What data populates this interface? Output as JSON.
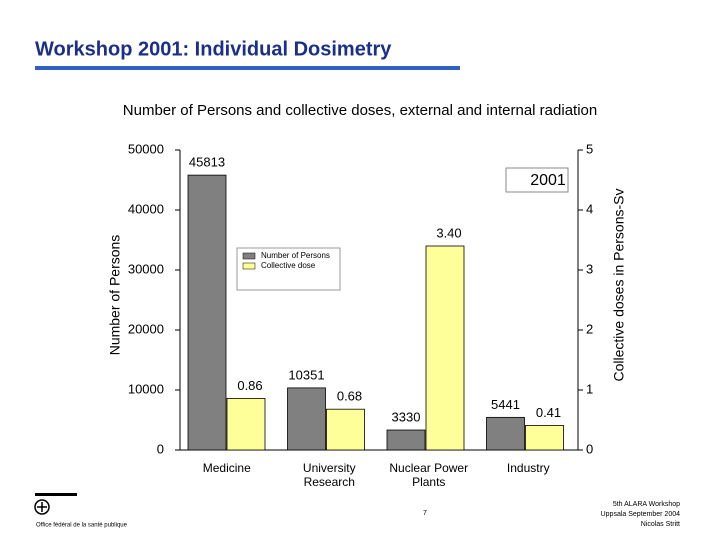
{
  "header": {
    "title": "Workshop 2001: Individual Dosimetry"
  },
  "chart_data": {
    "type": "bar",
    "title": "Number of Persons and collective doses, external and internal radiation",
    "y_label": "Number of Persons",
    "y2_label": "Collective doses in Persons-Sv",
    "annotation": "2001",
    "categories": [
      "Medicine",
      "University Research",
      "Nuclear Power Plants",
      "Industry"
    ],
    "series": [
      {
        "name": "Number of Persons",
        "color": "#808080",
        "values": [
          45813,
          10351,
          3330,
          5441
        ]
      },
      {
        "name": "Collective dose",
        "color": "#ffff99",
        "axis": "y2",
        "values": [
          0.86,
          0.68,
          3.4,
          0.41
        ],
        "value_labels": [
          "0.86",
          "0.68",
          "3.40",
          "0.41"
        ]
      }
    ],
    "ylim": [
      0,
      50000
    ],
    "yticks": [
      0,
      10000,
      20000,
      30000,
      40000,
      50000
    ],
    "y2lim": [
      0,
      5
    ],
    "y2ticks": [
      0,
      1,
      2,
      3,
      4,
      5
    ],
    "legend": "upper left",
    "grid": false
  },
  "footer": {
    "organization": "Office fédéral de la santé publique",
    "page": "7",
    "event": [
      "5th ALARA Workshop",
      "Uppsala September 2004",
      "Nicolas Stritt"
    ]
  }
}
